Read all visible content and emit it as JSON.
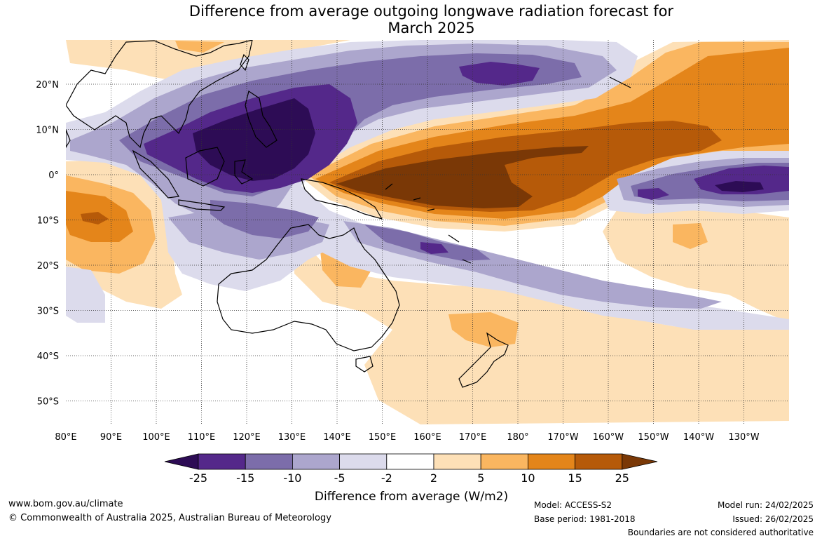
{
  "title": {
    "line1": "Difference from average outgoing longwave radiation forecast for",
    "line2": "March 2025"
  },
  "map": {
    "lon_labels": [
      "80°E",
      "90°E",
      "100°E",
      "110°E",
      "120°E",
      "130°E",
      "140°E",
      "150°E",
      "160°E",
      "170°E",
      "180°",
      "170°W",
      "160°W",
      "150°W",
      "140°W",
      "130°W"
    ],
    "lat_labels": [
      "20°N",
      "10°N",
      "0°",
      "10°S",
      "20°S",
      "30°S",
      "40°S",
      "50°S"
    ],
    "grid": true,
    "projection": "plate carree",
    "extent": {
      "lon": [
        80,
        240
      ],
      "lat": [
        -55,
        30
      ]
    }
  },
  "colorbar": {
    "tick_labels": [
      "-25",
      "-15",
      "-10",
      "-5",
      "-2",
      "2",
      "5",
      "10",
      "15",
      "25"
    ],
    "colors": [
      "#2d0c55",
      "#54288a",
      "#7c6daa",
      "#aca6cd",
      "#dcdbec",
      "#ffffff",
      "#fde0b7",
      "#fab660",
      "#e4851a",
      "#b65a09",
      "#7a3806"
    ],
    "label": "Difference from average (W/m2)",
    "extend": "both"
  },
  "footer": {
    "website": "www.bom.gov.au/climate",
    "copyright": "© Commonwealth of Australia 2025, Australian Bureau of Meteorology",
    "model": "Model: ACCESS-S2",
    "base_period": "Base period: 1981-2018",
    "model_run": "Model run: 24/02/2025",
    "issued": "Issued: 26/02/2025",
    "disclaimer": "Boundaries are not considered authoritative"
  }
}
